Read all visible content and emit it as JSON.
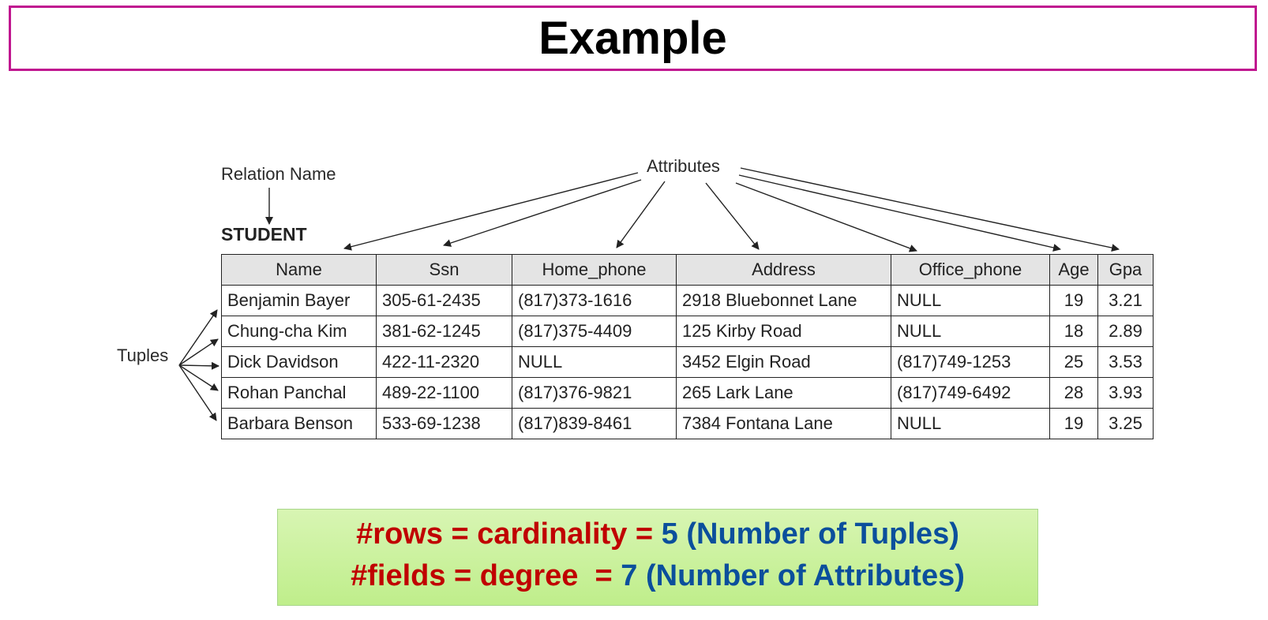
{
  "slide": {
    "title": "Example"
  },
  "diagram": {
    "relation_label": "Relation Name",
    "attributes_label": "Attributes",
    "tuples_label": "Tuples",
    "relation_name": "STUDENT"
  },
  "table": {
    "columns": [
      "Name",
      "Ssn",
      "Home_phone",
      "Address",
      "Office_phone",
      "Age",
      "Gpa"
    ],
    "rows": [
      [
        "Benjamin Bayer",
        "305-61-2435",
        "(817)373-1616",
        "2918 Bluebonnet Lane",
        "NULL",
        "19",
        "3.21"
      ],
      [
        "Chung-cha Kim",
        "381-62-1245",
        "(817)375-4409",
        "125 Kirby Road",
        "NULL",
        "18",
        "2.89"
      ],
      [
        "Dick Davidson",
        "422-11-2320",
        "NULL",
        "3452 Elgin Road",
        "(817)749-1253",
        "25",
        "3.53"
      ],
      [
        "Rohan Panchal",
        "489-22-1100",
        "(817)376-9821",
        "265 Lark Lane",
        "(817)749-6492",
        "28",
        "3.93"
      ],
      [
        "Barbara Benson",
        "533-69-1238",
        "(817)839-8461",
        "7384 Fontana Lane",
        "NULL",
        "19",
        "3.25"
      ]
    ]
  },
  "formula": {
    "line1": {
      "label": "#rows = cardinality = ",
      "value": "5 (Number of Tuples)"
    },
    "line2": {
      "label": "#fields = degree  = ",
      "value": "7 (Number of Attributes)"
    }
  },
  "colors": {
    "border": "#c0168f",
    "label_red": "#c00000",
    "value_blue": "#0b4f9c",
    "box_green": "#c9f29c",
    "header_gray": "#e4e4e4"
  }
}
